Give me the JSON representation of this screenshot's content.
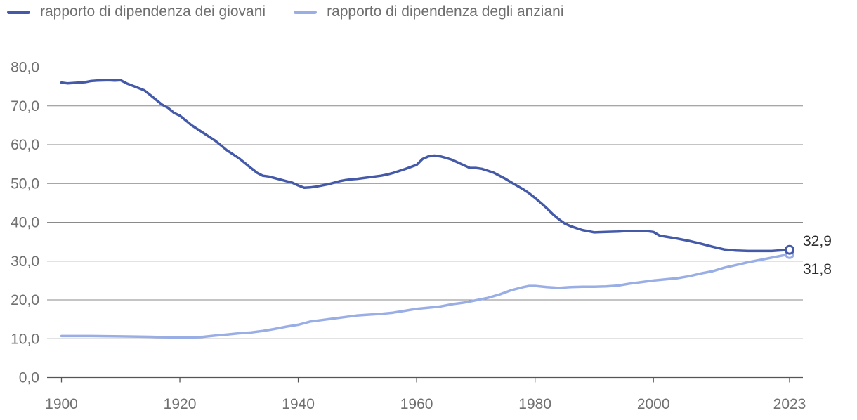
{
  "chart_data": {
    "type": "line",
    "title": "",
    "xlabel": "",
    "ylabel": "",
    "xlim": [
      1900,
      2023
    ],
    "ylim": [
      0,
      80
    ],
    "x_ticks": [
      1900,
      1920,
      1940,
      1960,
      1980,
      2000,
      2023
    ],
    "y_ticks": [
      0,
      10,
      20,
      30,
      40,
      50,
      60,
      70,
      80
    ],
    "y_tick_labels": [
      "0,0",
      "10,0",
      "20,0",
      "30,0",
      "40,0",
      "50,0",
      "60,0",
      "70,0",
      "80,0"
    ],
    "grid": "horizontal",
    "legend_position": "top-left",
    "series": [
      {
        "name": "rapporto di dipendenza dei giovani",
        "color": "#4459a8",
        "points": [
          [
            1900,
            76.0
          ],
          [
            1901,
            75.8
          ],
          [
            1903,
            76.0
          ],
          [
            1904,
            76.1
          ],
          [
            1905,
            76.4
          ],
          [
            1906,
            76.5
          ],
          [
            1908,
            76.6
          ],
          [
            1909,
            76.5
          ],
          [
            1910,
            76.6
          ],
          [
            1911,
            75.8
          ],
          [
            1912,
            75.2
          ],
          [
            1914,
            74.0
          ],
          [
            1915,
            72.8
          ],
          [
            1917,
            70.3
          ],
          [
            1918,
            69.5
          ],
          [
            1919,
            68.2
          ],
          [
            1920,
            67.5
          ],
          [
            1922,
            65.0
          ],
          [
            1924,
            63.0
          ],
          [
            1926,
            61.0
          ],
          [
            1928,
            58.5
          ],
          [
            1930,
            56.5
          ],
          [
            1932,
            54.0
          ],
          [
            1933,
            52.8
          ],
          [
            1934,
            52.0
          ],
          [
            1935,
            51.8
          ],
          [
            1936,
            51.4
          ],
          [
            1938,
            50.6
          ],
          [
            1939,
            50.2
          ],
          [
            1940,
            49.5
          ],
          [
            1941,
            48.9
          ],
          [
            1942,
            49.0
          ],
          [
            1943,
            49.2
          ],
          [
            1945,
            49.8
          ],
          [
            1947,
            50.6
          ],
          [
            1948,
            50.9
          ],
          [
            1949,
            51.1
          ],
          [
            1950,
            51.2
          ],
          [
            1952,
            51.6
          ],
          [
            1954,
            52.0
          ],
          [
            1955,
            52.3
          ],
          [
            1956,
            52.7
          ],
          [
            1958,
            53.7
          ],
          [
            1960,
            54.8
          ],
          [
            1961,
            56.3
          ],
          [
            1962,
            57.0
          ],
          [
            1963,
            57.2
          ],
          [
            1964,
            57.0
          ],
          [
            1965,
            56.6
          ],
          [
            1966,
            56.1
          ],
          [
            1967,
            55.4
          ],
          [
            1968,
            54.7
          ],
          [
            1969,
            54.0
          ],
          [
            1970,
            54.0
          ],
          [
            1971,
            53.8
          ],
          [
            1972,
            53.3
          ],
          [
            1973,
            52.8
          ],
          [
            1974,
            52.0
          ],
          [
            1975,
            51.2
          ],
          [
            1976,
            50.3
          ],
          [
            1977,
            49.4
          ],
          [
            1978,
            48.5
          ],
          [
            1979,
            47.5
          ],
          [
            1980,
            46.3
          ],
          [
            1981,
            45.0
          ],
          [
            1982,
            43.6
          ],
          [
            1983,
            42.1
          ],
          [
            1984,
            40.8
          ],
          [
            1985,
            39.7
          ],
          [
            1986,
            39.0
          ],
          [
            1987,
            38.5
          ],
          [
            1988,
            38.0
          ],
          [
            1989,
            37.7
          ],
          [
            1990,
            37.4
          ],
          [
            1992,
            37.5
          ],
          [
            1994,
            37.6
          ],
          [
            1996,
            37.8
          ],
          [
            1998,
            37.8
          ],
          [
            1999,
            37.7
          ],
          [
            2000,
            37.5
          ],
          [
            2001,
            36.6
          ],
          [
            2002,
            36.3
          ],
          [
            2004,
            35.8
          ],
          [
            2006,
            35.2
          ],
          [
            2008,
            34.5
          ],
          [
            2010,
            33.7
          ],
          [
            2012,
            33.0
          ],
          [
            2014,
            32.7
          ],
          [
            2016,
            32.6
          ],
          [
            2018,
            32.6
          ],
          [
            2020,
            32.6
          ],
          [
            2021,
            32.7
          ],
          [
            2023,
            32.9
          ]
        ],
        "end_label": "32,9"
      },
      {
        "name": "rapporto di dipendenza degli anziani",
        "color": "#9aaee6",
        "points": [
          [
            1900,
            10.7
          ],
          [
            1905,
            10.7
          ],
          [
            1910,
            10.6
          ],
          [
            1915,
            10.5
          ],
          [
            1920,
            10.3
          ],
          [
            1922,
            10.3
          ],
          [
            1924,
            10.5
          ],
          [
            1926,
            10.8
          ],
          [
            1928,
            11.1
          ],
          [
            1930,
            11.4
          ],
          [
            1932,
            11.6
          ],
          [
            1934,
            12.0
          ],
          [
            1936,
            12.5
          ],
          [
            1938,
            13.1
          ],
          [
            1940,
            13.6
          ],
          [
            1942,
            14.4
          ],
          [
            1944,
            14.8
          ],
          [
            1946,
            15.2
          ],
          [
            1948,
            15.6
          ],
          [
            1950,
            16.0
          ],
          [
            1952,
            16.2
          ],
          [
            1954,
            16.4
          ],
          [
            1956,
            16.7
          ],
          [
            1958,
            17.2
          ],
          [
            1960,
            17.7
          ],
          [
            1962,
            18.0
          ],
          [
            1964,
            18.3
          ],
          [
            1966,
            18.9
          ],
          [
            1968,
            19.3
          ],
          [
            1970,
            19.9
          ],
          [
            1972,
            20.5
          ],
          [
            1974,
            21.4
          ],
          [
            1976,
            22.5
          ],
          [
            1978,
            23.3
          ],
          [
            1979,
            23.6
          ],
          [
            1980,
            23.6
          ],
          [
            1982,
            23.3
          ],
          [
            1984,
            23.1
          ],
          [
            1986,
            23.3
          ],
          [
            1988,
            23.4
          ],
          [
            1990,
            23.4
          ],
          [
            1992,
            23.5
          ],
          [
            1994,
            23.7
          ],
          [
            1996,
            24.2
          ],
          [
            1998,
            24.6
          ],
          [
            2000,
            25.0
          ],
          [
            2002,
            25.3
          ],
          [
            2004,
            25.6
          ],
          [
            2006,
            26.1
          ],
          [
            2008,
            26.8
          ],
          [
            2010,
            27.4
          ],
          [
            2012,
            28.3
          ],
          [
            2014,
            29.0
          ],
          [
            2016,
            29.7
          ],
          [
            2018,
            30.3
          ],
          [
            2020,
            30.9
          ],
          [
            2022,
            31.5
          ],
          [
            2023,
            31.8
          ]
        ],
        "end_label": "31,8"
      }
    ]
  }
}
